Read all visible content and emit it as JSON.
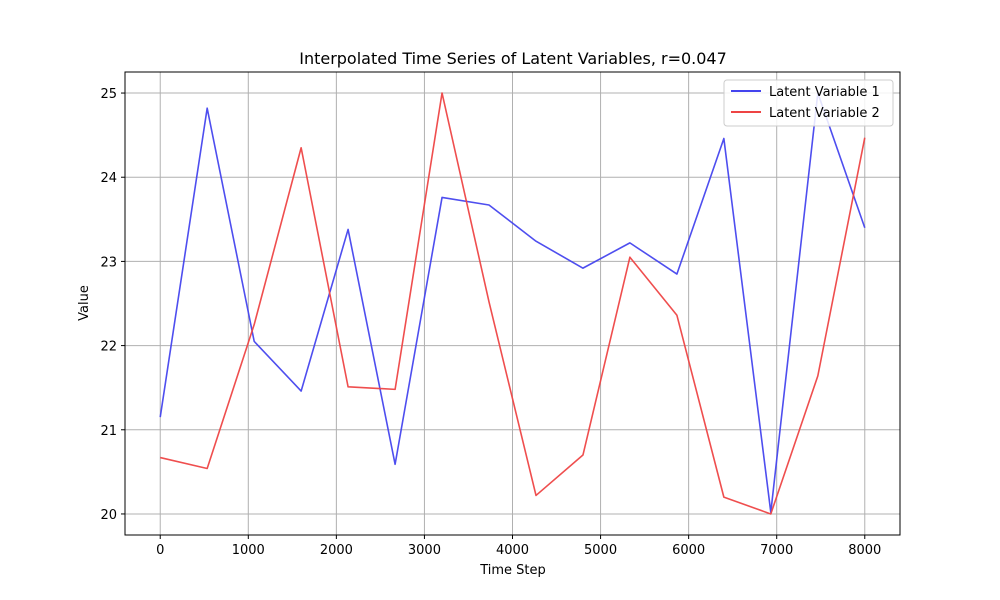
{
  "chart_data": {
    "type": "line",
    "title": "Interpolated Time Series of Latent Variables, r=0.047",
    "xlabel": "Time Step",
    "ylabel": "Value",
    "xlim": [
      -400,
      8400
    ],
    "ylim": [
      19.75,
      25.25
    ],
    "xticks": [
      0,
      1000,
      2000,
      3000,
      4000,
      5000,
      6000,
      7000,
      8000
    ],
    "yticks": [
      20,
      21,
      22,
      23,
      24,
      25
    ],
    "grid": true,
    "legend_position": "top-right",
    "x": [
      0,
      533,
      1067,
      1600,
      2133,
      2667,
      3200,
      3733,
      4267,
      4800,
      5333,
      5867,
      6400,
      6933,
      7467,
      8000
    ],
    "series": [
      {
        "name": "Latent Variable 1",
        "color": "#4444ee",
        "values": [
          21.15,
          24.82,
          22.05,
          21.46,
          23.38,
          20.59,
          23.76,
          23.67,
          23.24,
          22.92,
          23.22,
          22.85,
          24.46,
          20.02,
          25.0,
          23.4
        ]
      },
      {
        "name": "Latent Variable 2",
        "color": "#ee4444",
        "values": [
          20.67,
          20.54,
          22.25,
          24.35,
          21.51,
          21.48,
          25.0,
          22.52,
          20.22,
          20.7,
          23.05,
          22.36,
          20.2,
          20.0,
          21.64,
          24.47
        ]
      }
    ]
  }
}
